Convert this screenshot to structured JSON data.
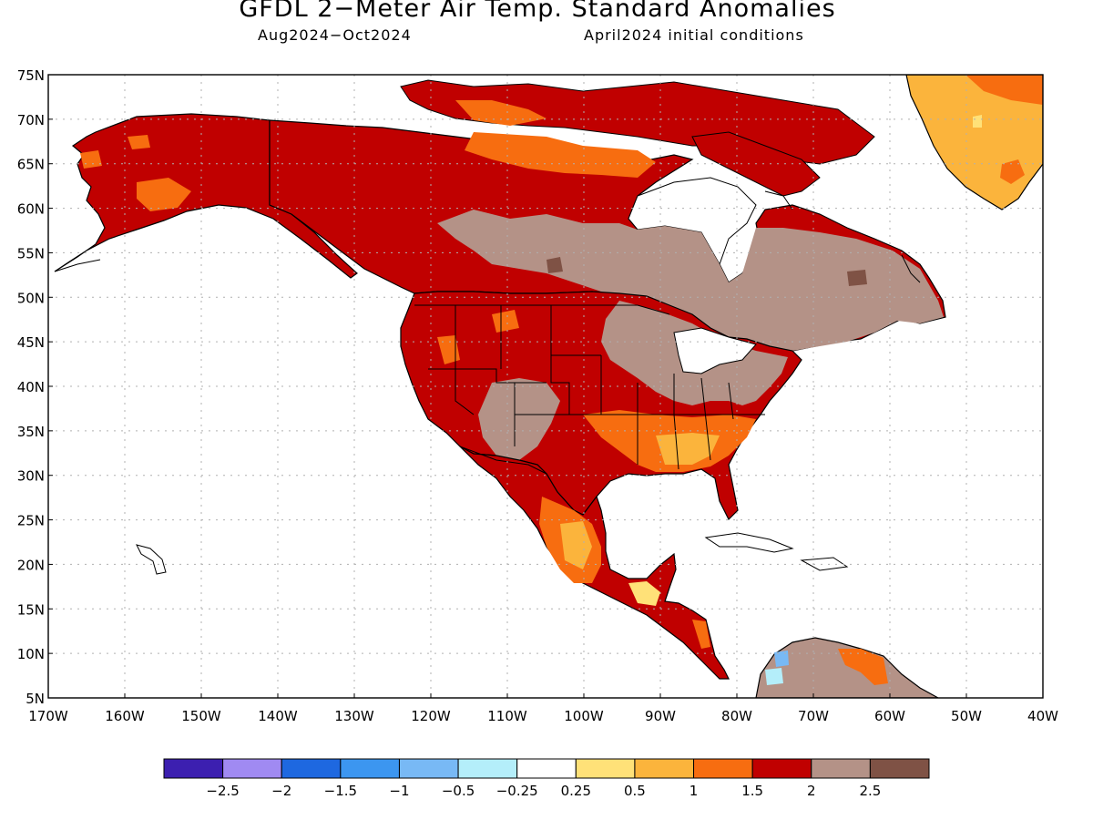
{
  "title": "GFDL 2−Meter Air Temp. Standard Anomalies",
  "subtitle_left": "Aug2024−Oct2024",
  "subtitle_right": "April2024 initial conditions",
  "latitude_labels": [
    "75N",
    "70N",
    "65N",
    "60N",
    "55N",
    "50N",
    "45N",
    "40N",
    "35N",
    "30N",
    "25N",
    "20N",
    "15N",
    "10N",
    "5N"
  ],
  "longitude_labels": [
    "170W",
    "160W",
    "150W",
    "140W",
    "130W",
    "120W",
    "110W",
    "100W",
    "90W",
    "80W",
    "70W",
    "60W",
    "50W",
    "40W"
  ],
  "legend": {
    "colors": [
      "#3c1fb0",
      "#a08af2",
      "#1e68e0",
      "#3c96f0",
      "#78b9f5",
      "#b4eefa",
      "#ffffff",
      "#ffe178",
      "#fbb43c",
      "#f76d10",
      "#c00000",
      "#b49287",
      "#7f5245"
    ],
    "labels": [
      "−2.5",
      "−2",
      "−1.5",
      "−1",
      "−0.5",
      "−0.25",
      "0.25",
      "0.5",
      "1",
      "1.5",
      "2",
      "2.5"
    ]
  },
  "colors": {
    "red": "#c00000",
    "orange": "#f76d10",
    "light_orange": "#fbb43c",
    "yellow": "#ffe178",
    "taupe": "#b49287",
    "dark_taupe": "#7f5245",
    "light_blue": "#78b9f5",
    "pale_blue": "#b4eefa",
    "water": "#ffffff"
  }
}
